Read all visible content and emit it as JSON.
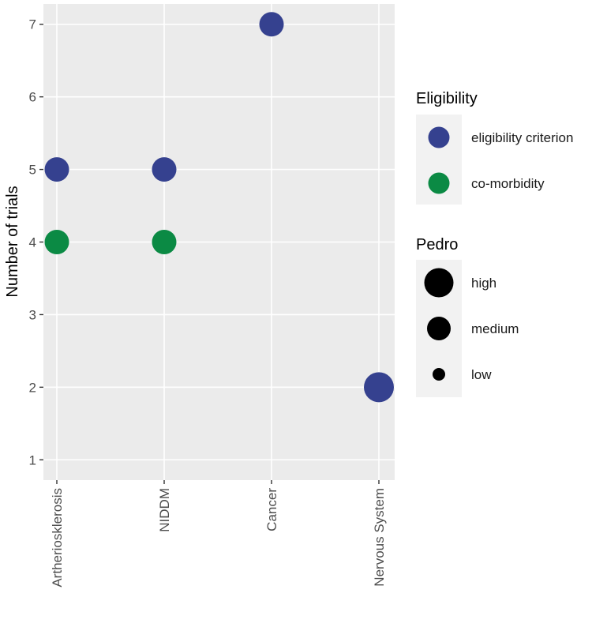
{
  "chart_data": {
    "type": "scatter",
    "title": "",
    "xlabel": "",
    "ylabel": "Number of trials",
    "categories": [
      "Artheriosklerosis",
      "NIDDM",
      "Cancer",
      "Nervous System"
    ],
    "y_ticks": [
      "1",
      "2",
      "3",
      "4",
      "5",
      "6",
      "7"
    ],
    "ylim": [
      0.72,
      7.28
    ],
    "grid": true,
    "points": [
      {
        "category": "Artheriosklerosis",
        "y": 5,
        "eligibility": "eligibility criterion",
        "pedro": "medium"
      },
      {
        "category": "Artheriosklerosis",
        "y": 4,
        "eligibility": "co-morbidity",
        "pedro": "medium"
      },
      {
        "category": "NIDDM",
        "y": 5,
        "eligibility": "eligibility criterion",
        "pedro": "medium"
      },
      {
        "category": "NIDDM",
        "y": 4,
        "eligibility": "co-morbidity",
        "pedro": "medium"
      },
      {
        "category": "Cancer",
        "y": 7,
        "eligibility": "eligibility criterion",
        "pedro": "medium"
      },
      {
        "category": "Nervous System",
        "y": 2,
        "eligibility": "eligibility criterion",
        "pedro": "high"
      }
    ],
    "legends": {
      "eligibility": {
        "title": "Eligibility",
        "items": [
          {
            "label": "eligibility criterion",
            "color": "#35418f"
          },
          {
            "label": "co-morbidity",
            "color": "#0b8a44"
          }
        ]
      },
      "pedro": {
        "title": "Pedro",
        "items": [
          {
            "label": "high",
            "level": "high"
          },
          {
            "label": "medium",
            "level": "medium"
          },
          {
            "label": "low",
            "level": "low"
          }
        ]
      }
    },
    "legend_position": "right",
    "colors": {
      "panel_background": "#ebebeb",
      "grid_line": "#ffffff",
      "tick_text": "#4d4d4d",
      "legend_key_background": "#f2f2f2"
    }
  }
}
